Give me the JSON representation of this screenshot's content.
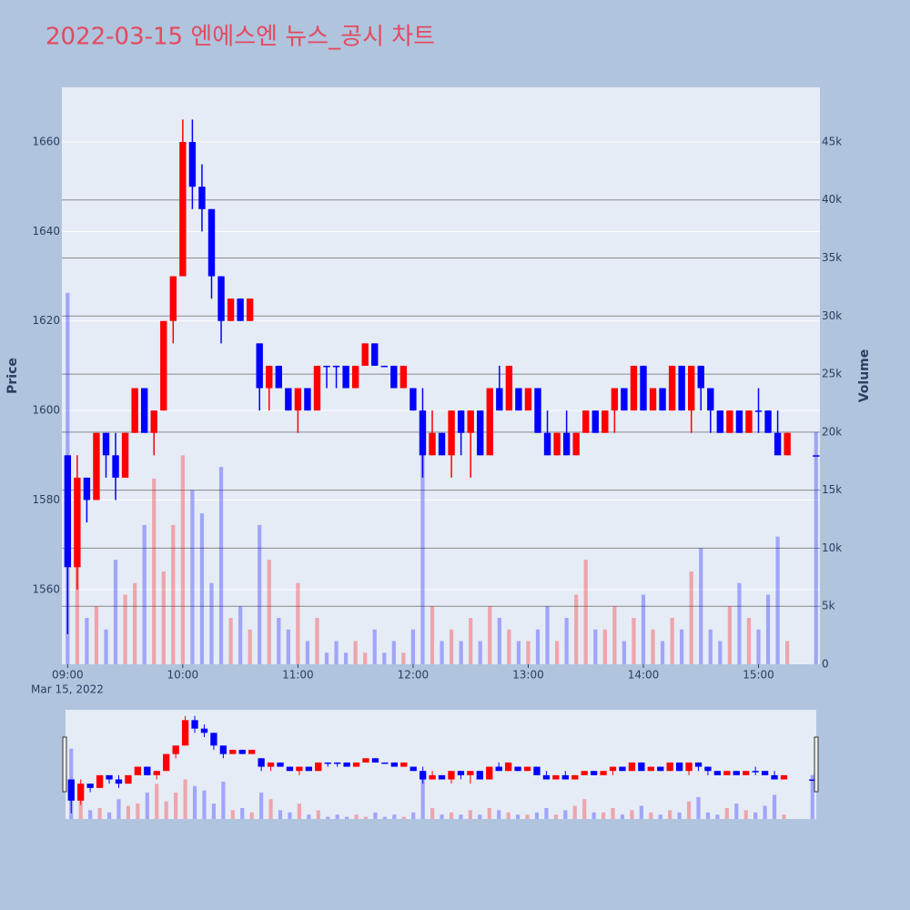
{
  "chart_data": {
    "type": "candlestick",
    "title": "2022-03-15 엔에스엔 뉴스_공시 차트",
    "x": [
      "09:00",
      "09:05",
      "09:10",
      "09:15",
      "09:20",
      "09:25",
      "09:30",
      "09:35",
      "09:40",
      "09:45",
      "09:50",
      "09:55",
      "10:00",
      "10:05",
      "10:10",
      "10:15",
      "10:20",
      "10:25",
      "10:30",
      "10:35",
      "10:40",
      "10:45",
      "10:50",
      "10:55",
      "11:00",
      "11:05",
      "11:10",
      "11:15",
      "11:20",
      "11:25",
      "11:30",
      "11:35",
      "11:40",
      "11:45",
      "11:50",
      "11:55",
      "12:00",
      "12:05",
      "12:10",
      "12:15",
      "12:20",
      "12:25",
      "12:30",
      "12:35",
      "12:40",
      "12:45",
      "12:50",
      "12:55",
      "13:00",
      "13:05",
      "13:10",
      "13:15",
      "13:20",
      "13:25",
      "13:30",
      "13:35",
      "13:40",
      "13:45",
      "13:50",
      "13:55",
      "14:00",
      "14:05",
      "14:10",
      "14:15",
      "14:20",
      "14:25",
      "14:30",
      "14:35",
      "14:40",
      "14:45",
      "14:50",
      "14:55",
      "15:00",
      "15:05",
      "15:10",
      "15:15",
      "15:30"
    ],
    "open": [
      1590,
      1565,
      1585,
      1580,
      1595,
      1590,
      1585,
      1595,
      1605,
      1595,
      1600,
      1620,
      1630,
      1660,
      1650,
      1645,
      1630,
      1620,
      1625,
      1620,
      1615,
      1605,
      1610,
      1605,
      1600,
      1605,
      1600,
      1610,
      1610,
      1610,
      1605,
      1610,
      1615,
      1610,
      1610,
      1605,
      1605,
      1600,
      1590,
      1595,
      1590,
      1600,
      1595,
      1600,
      1590,
      1605,
      1600,
      1605,
      1600,
      1605,
      1595,
      1590,
      1595,
      1590,
      1595,
      1600,
      1595,
      1600,
      1605,
      1600,
      1610,
      1600,
      1605,
      1600,
      1610,
      1600,
      1610,
      1605,
      1600,
      1595,
      1600,
      1595,
      1600,
      1600,
      1595,
      1590,
      1590
    ],
    "high": [
      1590,
      1590,
      1585,
      1595,
      1595,
      1595,
      1595,
      1605,
      1605,
      1600,
      1620,
      1630,
      1665,
      1665,
      1655,
      1645,
      1630,
      1625,
      1625,
      1625,
      1615,
      1610,
      1610,
      1605,
      1605,
      1605,
      1610,
      1610,
      1610,
      1610,
      1610,
      1615,
      1615,
      1610,
      1610,
      1610,
      1605,
      1605,
      1600,
      1595,
      1600,
      1600,
      1600,
      1600,
      1605,
      1610,
      1610,
      1605,
      1605,
      1605,
      1600,
      1595,
      1600,
      1595,
      1600,
      1600,
      1600,
      1605,
      1605,
      1610,
      1610,
      1605,
      1605,
      1610,
      1610,
      1610,
      1610,
      1605,
      1600,
      1600,
      1600,
      1600,
      1605,
      1600,
      1600,
      1595,
      1590
    ],
    "low": [
      1550,
      1560,
      1575,
      1580,
      1585,
      1580,
      1585,
      1595,
      1595,
      1590,
      1600,
      1615,
      1630,
      1645,
      1640,
      1625,
      1615,
      1620,
      1620,
      1620,
      1600,
      1600,
      1605,
      1600,
      1595,
      1600,
      1600,
      1605,
      1605,
      1605,
      1605,
      1610,
      1610,
      1610,
      1605,
      1605,
      1600,
      1585,
      1590,
      1590,
      1585,
      1590,
      1585,
      1590,
      1590,
      1600,
      1600,
      1600,
      1600,
      1595,
      1590,
      1590,
      1590,
      1590,
      1595,
      1595,
      1595,
      1595,
      1600,
      1600,
      1600,
      1600,
      1600,
      1600,
      1600,
      1595,
      1600,
      1595,
      1595,
      1595,
      1595,
      1595,
      1595,
      1595,
      1590,
      1590,
      1590
    ],
    "close": [
      1565,
      1585,
      1580,
      1595,
      1590,
      1585,
      1595,
      1605,
      1595,
      1600,
      1620,
      1630,
      1660,
      1650,
      1645,
      1630,
      1620,
      1625,
      1620,
      1625,
      1605,
      1610,
      1605,
      1600,
      1605,
      1600,
      1610,
      1610,
      1610,
      1605,
      1610,
      1615,
      1610,
      1610,
      1605,
      1610,
      1600,
      1590,
      1595,
      1590,
      1600,
      1595,
      1600,
      1590,
      1605,
      1600,
      1610,
      1600,
      1605,
      1595,
      1590,
      1595,
      1590,
      1595,
      1600,
      1595,
      1600,
      1605,
      1600,
      1610,
      1600,
      1605,
      1600,
      1610,
      1600,
      1610,
      1605,
      1600,
      1595,
      1600,
      1595,
      1600,
      1600,
      1595,
      1590,
      1595,
      1590
    ],
    "volume": [
      32000,
      9000,
      4000,
      5000,
      3000,
      9000,
      6000,
      7000,
      12000,
      16000,
      8000,
      12000,
      18000,
      15000,
      13000,
      7000,
      17000,
      4000,
      5000,
      3000,
      12000,
      9000,
      4000,
      3000,
      7000,
      2000,
      4000,
      1000,
      2000,
      1000,
      2000,
      1000,
      3000,
      1000,
      2000,
      1000,
      3000,
      21000,
      5000,
      2000,
      3000,
      2000,
      4000,
      2000,
      5000,
      4000,
      3000,
      2000,
      2000,
      3000,
      5000,
      2000,
      4000,
      6000,
      9000,
      3000,
      3000,
      5000,
      2000,
      4000,
      6000,
      3000,
      2000,
      4000,
      3000,
      8000,
      10000,
      3000,
      2000,
      5000,
      7000,
      4000,
      3000,
      6000,
      11000,
      2000,
      20000
    ],
    "increasing_color": "#ff0000",
    "decreasing_color": "#0000ff",
    "xlim": [
      "08:57",
      "15:32"
    ],
    "xticks": [
      "09:00",
      "10:00",
      "11:00",
      "12:00",
      "13:00",
      "14:00",
      "15:00"
    ],
    "x_date_label": "Mar 15, 2022",
    "ylabel": "Price",
    "y2label": "Volume",
    "ylim": [
      1543.3,
      1672.2
    ],
    "yticks": [
      1560,
      1580,
      1600,
      1620,
      1640,
      1660
    ],
    "y2lim": [
      0,
      49700
    ],
    "y2ticks": [
      0,
      {
        "value": 5000,
        "label": "5k"
      },
      {
        "value": 10000,
        "label": "10k"
      },
      {
        "value": 15000,
        "label": "15k"
      },
      {
        "value": 20000,
        "label": "20k"
      },
      {
        "value": 25000,
        "label": "25k"
      },
      {
        "value": 30000,
        "label": "30k"
      },
      {
        "value": 35000,
        "label": "35k"
      },
      {
        "value": 40000,
        "label": "40k"
      },
      {
        "value": 45000,
        "label": "45k"
      }
    ],
    "grid": true,
    "rangeslider": true
  }
}
